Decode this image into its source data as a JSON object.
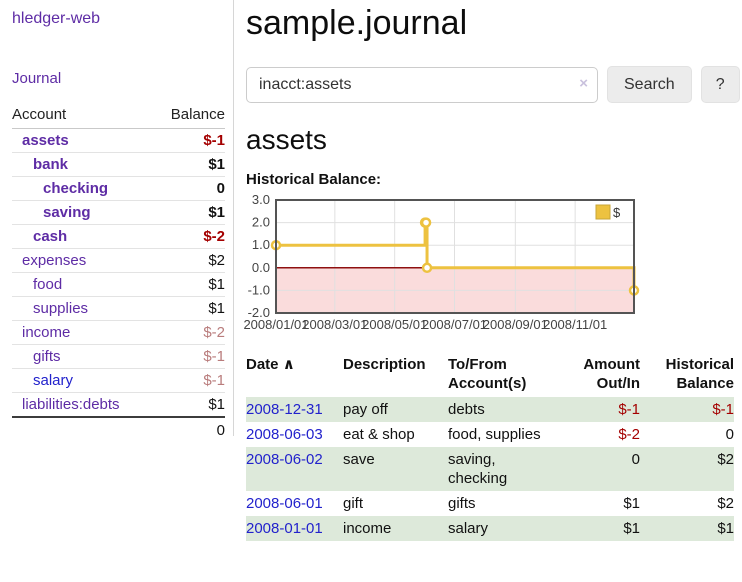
{
  "sidebar": {
    "brand": "hledger-web",
    "nav_journal": "Journal",
    "accounts_table": {
      "headers": {
        "account": "Account",
        "balance": "Balance"
      },
      "rows": [
        {
          "account": "assets",
          "balance": "$-1",
          "depth": 1,
          "bold": true
        },
        {
          "account": "bank",
          "balance": "$1",
          "depth": 2,
          "bold": true
        },
        {
          "account": "checking",
          "balance": "0",
          "depth": 3,
          "bold": true
        },
        {
          "account": "saving",
          "balance": "$1",
          "depth": 3,
          "bold": true
        },
        {
          "account": "cash",
          "balance": "$-2",
          "depth": 2,
          "bold": true
        },
        {
          "account": "expenses",
          "balance": "$2",
          "depth": 1,
          "bold": false
        },
        {
          "account": "food",
          "balance": "$1",
          "depth": 2,
          "bold": false
        },
        {
          "account": "supplies",
          "balance": "$1",
          "depth": 2,
          "bold": false
        },
        {
          "account": "income",
          "balance": "$-2",
          "depth": 1,
          "bold": false
        },
        {
          "account": "gifts",
          "balance": "$-1",
          "depth": 2,
          "bold": false
        },
        {
          "account": "salary",
          "balance": "$-1",
          "depth": 2,
          "bold": false,
          "link_style": "blue"
        },
        {
          "account": "liabilities:debts",
          "balance": "$1",
          "depth": 1,
          "bold": false
        }
      ],
      "total": "0"
    }
  },
  "header": {
    "title": "sample.journal",
    "search": {
      "value": "inacct:assets",
      "clear_icon": "×",
      "search_button": "Search",
      "help_button": "?"
    }
  },
  "main": {
    "account_heading": "assets",
    "chart_label": "Historical Balance:"
  },
  "chart_data": {
    "type": "line",
    "title": "Historical Balance:",
    "legend": {
      "position": "top-right",
      "label": "$"
    },
    "series": [
      {
        "name": "$",
        "color": "#EDC240",
        "step": true,
        "points": [
          [
            "2008-01-01",
            1
          ],
          [
            "2008-06-01",
            2
          ],
          [
            "2008-06-02",
            2
          ],
          [
            "2008-06-03",
            0
          ],
          [
            "2008-12-31",
            -1
          ]
        ]
      }
    ],
    "x_range": [
      "2008-01-01",
      "2008-12-31"
    ],
    "xticks": [
      "2008/01/01",
      "2008/03/01",
      "2008/05/01",
      "2008/07/01",
      "2008/09/01",
      "2008/11/01"
    ],
    "yticks": [
      3.0,
      2.0,
      1.0,
      0.0,
      -1.0,
      -2.0
    ],
    "ylim": [
      -2,
      3
    ],
    "grid": true,
    "zero_line_color": "#8f1010",
    "negative_region_color": "#fadcdc",
    "grid_color": "#e0e0e0",
    "border_color": "#545454",
    "tick_label_color": "#444444"
  },
  "register": {
    "headers": {
      "date": "Date",
      "sort_icon": "∧",
      "description": "Description",
      "tofrom": "To/From Account(s)",
      "amount": "Amount Out/In",
      "historical": "Historical Balance"
    },
    "rows": [
      {
        "date": "2008-12-31",
        "description": "pay off",
        "accounts": "debts",
        "amount": "$-1",
        "historical": "$-1"
      },
      {
        "date": "2008-06-03",
        "description": "eat & shop",
        "accounts": "food, supplies",
        "amount": "$-2",
        "historical": "0"
      },
      {
        "date": "2008-06-02",
        "description": "save",
        "accounts": "saving, checking",
        "amount": "0",
        "historical": "$2"
      },
      {
        "date": "2008-06-01",
        "description": "gift",
        "accounts": "gifts",
        "amount": "$1",
        "historical": "$2"
      },
      {
        "date": "2008-01-01",
        "description": "income",
        "accounts": "salary",
        "amount": "$1",
        "historical": "$1"
      }
    ]
  },
  "colors": {
    "link_purple": "#5e2ca5",
    "link_blue": "#2222cc",
    "negative_strong": "#a40000",
    "negative_dim": "#b97c7c",
    "row_green": "#dde9da"
  }
}
